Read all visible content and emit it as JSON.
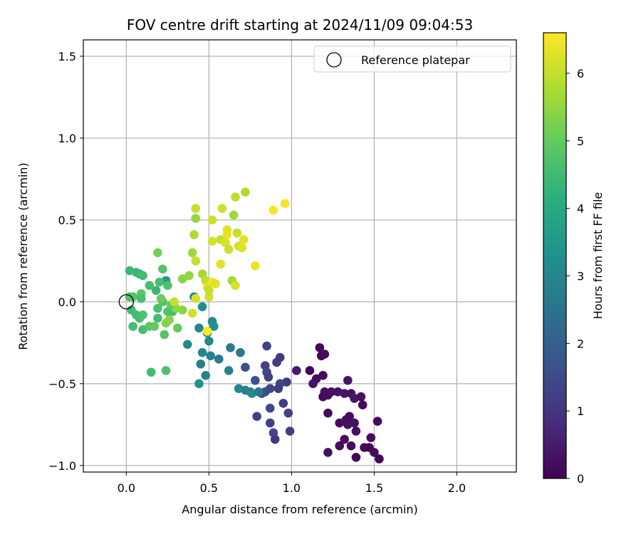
{
  "chart_data": {
    "type": "scatter",
    "title": "FOV centre drift starting at 2024/11/09 09:04:53",
    "xlabel": "Angular distance from reference (arcmin)",
    "ylabel": "Rotation from reference (arcmin)",
    "xlim": [
      -0.26,
      2.36
    ],
    "ylim": [
      -1.04,
      1.6
    ],
    "xticks": [
      0.0,
      0.5,
      1.0,
      1.5,
      2.0
    ],
    "xtick_labels": [
      "0.0",
      "0.5",
      "1.0",
      "1.5",
      "2.0"
    ],
    "yticks": [
      -1.0,
      -0.5,
      0.0,
      0.5,
      1.0,
      1.5
    ],
    "ytick_labels": [
      "−1.0",
      "−0.5",
      "0.0",
      "0.5",
      "1.0",
      "1.5"
    ],
    "grid": true,
    "legend": {
      "placement": "top-right",
      "entries": [
        "Reference platepar"
      ]
    },
    "colorbar": {
      "label": "Hours from first FF file",
      "range": [
        0,
        6.6
      ],
      "colormap": "viridis",
      "ticks": [
        0,
        1,
        2,
        3,
        4,
        5,
        6
      ],
      "tick_labels": [
        "0",
        "1",
        "2",
        "3",
        "4",
        "5",
        "6"
      ]
    },
    "reference": {
      "x": 0.0,
      "y": 0.0,
      "name": "Reference platepar"
    },
    "series": [
      {
        "x": 1.17,
        "y": -0.28,
        "c": 0.1
      },
      {
        "x": 1.18,
        "y": -0.33,
        "c": 0.1
      },
      {
        "x": 1.2,
        "y": -0.32,
        "c": 0.2
      },
      {
        "x": 1.11,
        "y": -0.42,
        "c": 0.1
      },
      {
        "x": 1.15,
        "y": -0.47,
        "c": 0.2
      },
      {
        "x": 1.19,
        "y": -0.45,
        "c": 0.2
      },
      {
        "x": 1.13,
        "y": -0.5,
        "c": 0.3
      },
      {
        "x": 1.2,
        "y": -0.55,
        "c": 0.3
      },
      {
        "x": 1.22,
        "y": -0.57,
        "c": 0.2
      },
      {
        "x": 1.19,
        "y": -0.58,
        "c": 0.2
      },
      {
        "x": 1.24,
        "y": -0.55,
        "c": 0.3
      },
      {
        "x": 1.28,
        "y": -0.55,
        "c": 0.3
      },
      {
        "x": 1.32,
        "y": -0.56,
        "c": 0.4
      },
      {
        "x": 1.34,
        "y": -0.48,
        "c": 0.4
      },
      {
        "x": 1.36,
        "y": -0.56,
        "c": 0.3
      },
      {
        "x": 1.38,
        "y": -0.59,
        "c": 0.4
      },
      {
        "x": 1.42,
        "y": -0.58,
        "c": 0.3
      },
      {
        "x": 1.43,
        "y": -0.63,
        "c": 0.2
      },
      {
        "x": 1.22,
        "y": -0.68,
        "c": 0.2
      },
      {
        "x": 1.29,
        "y": -0.74,
        "c": 0.2
      },
      {
        "x": 1.33,
        "y": -0.72,
        "c": 0.3
      },
      {
        "x": 1.35,
        "y": -0.7,
        "c": 0.2
      },
      {
        "x": 1.34,
        "y": -0.75,
        "c": 0.3
      },
      {
        "x": 1.38,
        "y": -0.74,
        "c": 0.3
      },
      {
        "x": 1.39,
        "y": -0.79,
        "c": 0.3
      },
      {
        "x": 1.32,
        "y": -0.84,
        "c": 0.3
      },
      {
        "x": 1.29,
        "y": -0.88,
        "c": 0.2
      },
      {
        "x": 1.36,
        "y": -0.88,
        "c": 0.2
      },
      {
        "x": 1.44,
        "y": -0.89,
        "c": 0.2
      },
      {
        "x": 1.47,
        "y": -0.89,
        "c": 0.1
      },
      {
        "x": 1.48,
        "y": -0.83,
        "c": 0.2
      },
      {
        "x": 1.52,
        "y": -0.73,
        "c": 0.2
      },
      {
        "x": 1.53,
        "y": -0.96,
        "c": 0.1
      },
      {
        "x": 1.5,
        "y": -0.92,
        "c": 0.2
      },
      {
        "x": 1.39,
        "y": -0.95,
        "c": 0.1
      },
      {
        "x": 1.22,
        "y": -0.92,
        "c": 0.3
      },
      {
        "x": 1.03,
        "y": -0.42,
        "c": 0.5
      },
      {
        "x": 0.93,
        "y": -0.34,
        "c": 1.1
      },
      {
        "x": 0.85,
        "y": -0.27,
        "c": 1.3
      },
      {
        "x": 0.91,
        "y": -0.37,
        "c": 1.2
      },
      {
        "x": 0.84,
        "y": -0.39,
        "c": 1.3
      },
      {
        "x": 0.85,
        "y": -0.43,
        "c": 1.4
      },
      {
        "x": 0.86,
        "y": -0.46,
        "c": 1.3
      },
      {
        "x": 0.97,
        "y": -0.49,
        "c": 1.1
      },
      {
        "x": 0.93,
        "y": -0.5,
        "c": 1.4
      },
      {
        "x": 0.92,
        "y": -0.53,
        "c": 1.2
      },
      {
        "x": 0.87,
        "y": -0.53,
        "c": 1.4
      },
      {
        "x": 0.84,
        "y": -0.55,
        "c": 1.5
      },
      {
        "x": 0.78,
        "y": -0.48,
        "c": 1.6
      },
      {
        "x": 0.82,
        "y": -0.56,
        "c": 1.6
      },
      {
        "x": 0.95,
        "y": -0.62,
        "c": 1.2
      },
      {
        "x": 0.87,
        "y": -0.65,
        "c": 1.5
      },
      {
        "x": 0.98,
        "y": -0.68,
        "c": 1.3
      },
      {
        "x": 0.79,
        "y": -0.7,
        "c": 1.3
      },
      {
        "x": 0.87,
        "y": -0.74,
        "c": 1.2
      },
      {
        "x": 0.89,
        "y": -0.8,
        "c": 1.4
      },
      {
        "x": 0.99,
        "y": -0.79,
        "c": 1.3
      },
      {
        "x": 0.9,
        "y": -0.84,
        "c": 1.1
      },
      {
        "x": 0.72,
        "y": -0.4,
        "c": 1.6
      },
      {
        "x": 0.69,
        "y": -0.31,
        "c": 2.6
      },
      {
        "x": 0.63,
        "y": -0.28,
        "c": 2.8
      },
      {
        "x": 0.62,
        "y": -0.42,
        "c": 2.9
      },
      {
        "x": 0.68,
        "y": -0.53,
        "c": 3.0
      },
      {
        "x": 0.72,
        "y": -0.54,
        "c": 2.8
      },
      {
        "x": 0.75,
        "y": -0.55,
        "c": 2.9
      },
      {
        "x": 0.76,
        "y": -0.56,
        "c": 3.1
      },
      {
        "x": 0.8,
        "y": -0.55,
        "c": 2.7
      },
      {
        "x": 0.56,
        "y": -0.35,
        "c": 2.7
      },
      {
        "x": 0.51,
        "y": -0.33,
        "c": 2.9
      },
      {
        "x": 0.46,
        "y": -0.31,
        "c": 3.0
      },
      {
        "x": 0.45,
        "y": -0.38,
        "c": 2.8
      },
      {
        "x": 0.48,
        "y": -0.45,
        "c": 2.9
      },
      {
        "x": 0.44,
        "y": -0.5,
        "c": 3.3
      },
      {
        "x": 0.37,
        "y": -0.26,
        "c": 3.1
      },
      {
        "x": 0.44,
        "y": -0.16,
        "c": 3.0
      },
      {
        "x": 0.49,
        "y": -0.19,
        "c": 3.1
      },
      {
        "x": 0.5,
        "y": -0.24,
        "c": 3.0
      },
      {
        "x": 0.52,
        "y": -0.12,
        "c": 3.2
      },
      {
        "x": 0.53,
        "y": -0.15,
        "c": 3.3
      },
      {
        "x": 0.46,
        "y": -0.03,
        "c": 3.2
      },
      {
        "x": 0.41,
        "y": 0.03,
        "c": 3.1
      },
      {
        "x": 0.24,
        "y": 0.13,
        "c": 3.5
      },
      {
        "x": 0.08,
        "y": 0.17,
        "c": 3.9
      },
      {
        "x": 0.06,
        "y": 0.18,
        "c": 4.4
      },
      {
        "x": 0.02,
        "y": 0.19,
        "c": 4.4
      },
      {
        "x": 0.1,
        "y": 0.16,
        "c": 4.5
      },
      {
        "x": 0.14,
        "y": 0.1,
        "c": 4.6
      },
      {
        "x": 0.18,
        "y": 0.07,
        "c": 4.4
      },
      {
        "x": 0.2,
        "y": 0.12,
        "c": 4.6
      },
      {
        "x": 0.22,
        "y": 0.2,
        "c": 4.8
      },
      {
        "x": 0.25,
        "y": 0.1,
        "c": 4.7
      },
      {
        "x": 0.02,
        "y": 0.03,
        "c": 4.7
      },
      {
        "x": 0.04,
        "y": 0.03,
        "c": 4.8
      },
      {
        "x": 0.09,
        "y": 0.05,
        "c": 4.9
      },
      {
        "x": 0.09,
        "y": 0.02,
        "c": 4.6
      },
      {
        "x": 0.03,
        "y": -0.05,
        "c": 4.5
      },
      {
        "x": 0.06,
        "y": -0.08,
        "c": 4.5
      },
      {
        "x": 0.08,
        "y": -0.1,
        "c": 4.6
      },
      {
        "x": 0.1,
        "y": -0.08,
        "c": 4.7
      },
      {
        "x": 0.19,
        "y": -0.1,
        "c": 4.6
      },
      {
        "x": 0.04,
        "y": -0.15,
        "c": 4.6
      },
      {
        "x": 0.1,
        "y": -0.17,
        "c": 4.6
      },
      {
        "x": 0.14,
        "y": -0.15,
        "c": 4.9
      },
      {
        "x": 0.17,
        "y": -0.15,
        "c": 5.0
      },
      {
        "x": 0.23,
        "y": -0.2,
        "c": 4.8
      },
      {
        "x": 0.19,
        "y": -0.04,
        "c": 4.7
      },
      {
        "x": 0.22,
        "y": 0.0,
        "c": 4.7
      },
      {
        "x": 0.25,
        "y": -0.06,
        "c": 4.8
      },
      {
        "x": 0.28,
        "y": -0.06,
        "c": 4.6
      },
      {
        "x": 0.24,
        "y": -0.13,
        "c": 5.3
      },
      {
        "x": 0.26,
        "y": -0.11,
        "c": 5.4
      },
      {
        "x": 0.3,
        "y": -0.04,
        "c": 5.5
      },
      {
        "x": 0.31,
        "y": -0.16,
        "c": 5.0
      },
      {
        "x": 0.34,
        "y": -0.05,
        "c": 5.4
      },
      {
        "x": 0.15,
        "y": -0.43,
        "c": 4.5
      },
      {
        "x": 0.24,
        "y": -0.42,
        "c": 4.7
      },
      {
        "x": 0.19,
        "y": 0.3,
        "c": 5.2
      },
      {
        "x": 0.21,
        "y": 0.02,
        "c": 5.1
      },
      {
        "x": 0.27,
        "y": -0.02,
        "c": 5.0
      },
      {
        "x": 0.29,
        "y": 0.0,
        "c": 6.0
      },
      {
        "x": 0.34,
        "y": 0.14,
        "c": 5.4
      },
      {
        "x": 0.38,
        "y": 0.16,
        "c": 5.5
      },
      {
        "x": 0.4,
        "y": 0.3,
        "c": 5.6
      },
      {
        "x": 0.41,
        "y": 0.41,
        "c": 5.8
      },
      {
        "x": 0.42,
        "y": 0.57,
        "c": 6.0
      },
      {
        "x": 0.42,
        "y": 0.51,
        "c": 5.5
      },
      {
        "x": 0.42,
        "y": 0.25,
        "c": 6.0
      },
      {
        "x": 0.4,
        "y": -0.07,
        "c": 6.1
      },
      {
        "x": 0.42,
        "y": 0.02,
        "c": 6.2
      },
      {
        "x": 0.46,
        "y": 0.17,
        "c": 5.7
      },
      {
        "x": 0.48,
        "y": 0.13,
        "c": 6.0
      },
      {
        "x": 0.49,
        "y": 0.09,
        "c": 6.3
      },
      {
        "x": 0.5,
        "y": 0.03,
        "c": 6.1
      },
      {
        "x": 0.5,
        "y": 0.07,
        "c": 6.0
      },
      {
        "x": 0.52,
        "y": 0.12,
        "c": 6.4
      },
      {
        "x": 0.52,
        "y": 0.37,
        "c": 6.2
      },
      {
        "x": 0.52,
        "y": 0.5,
        "c": 6.1
      },
      {
        "x": 0.54,
        "y": 0.11,
        "c": 6.3
      },
      {
        "x": 0.57,
        "y": 0.23,
        "c": 6.3
      },
      {
        "x": 0.57,
        "y": 0.38,
        "c": 6.0
      },
      {
        "x": 0.58,
        "y": 0.57,
        "c": 6.1
      },
      {
        "x": 0.6,
        "y": 0.36,
        "c": 6.2
      },
      {
        "x": 0.61,
        "y": 0.41,
        "c": 6.4
      },
      {
        "x": 0.61,
        "y": 0.44,
        "c": 6.3
      },
      {
        "x": 0.62,
        "y": 0.32,
        "c": 6.1
      },
      {
        "x": 0.64,
        "y": 0.13,
        "c": 5.7
      },
      {
        "x": 0.65,
        "y": 0.53,
        "c": 5.6
      },
      {
        "x": 0.66,
        "y": 0.1,
        "c": 6.2
      },
      {
        "x": 0.66,
        "y": 0.64,
        "c": 5.9
      },
      {
        "x": 0.67,
        "y": 0.42,
        "c": 6.0
      },
      {
        "x": 0.68,
        "y": 0.34,
        "c": 6.1
      },
      {
        "x": 0.7,
        "y": 0.33,
        "c": 6.3
      },
      {
        "x": 0.71,
        "y": 0.38,
        "c": 6.3
      },
      {
        "x": 0.72,
        "y": 0.67,
        "c": 5.8
      },
      {
        "x": 0.78,
        "y": 0.22,
        "c": 6.4
      },
      {
        "x": 0.89,
        "y": 0.56,
        "c": 6.5
      },
      {
        "x": 0.96,
        "y": 0.6,
        "c": 6.5
      },
      {
        "x": 0.49,
        "y": -0.18,
        "c": 6.6
      }
    ]
  }
}
